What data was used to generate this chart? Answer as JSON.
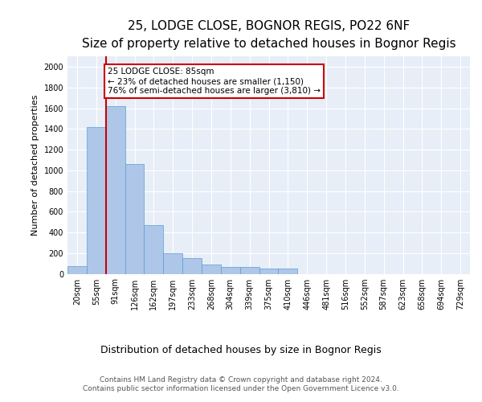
{
  "title_line1": "25, LODGE CLOSE, BOGNOR REGIS, PO22 6NF",
  "title_line2": "Size of property relative to detached houses in Bognor Regis",
  "xlabel": "Distribution of detached houses by size in Bognor Regis",
  "ylabel": "Number of detached properties",
  "categories": [
    "20sqm",
    "55sqm",
    "91sqm",
    "126sqm",
    "162sqm",
    "197sqm",
    "233sqm",
    "268sqm",
    "304sqm",
    "339sqm",
    "375sqm",
    "410sqm",
    "446sqm",
    "481sqm",
    "516sqm",
    "552sqm",
    "587sqm",
    "623sqm",
    "658sqm",
    "694sqm",
    "729sqm"
  ],
  "values": [
    75,
    1420,
    1620,
    1060,
    470,
    200,
    155,
    90,
    70,
    65,
    55,
    50,
    0,
    0,
    0,
    0,
    0,
    0,
    0,
    0,
    0
  ],
  "bar_color": "#aec6e8",
  "bar_edge_color": "#5a9fd4",
  "vline_color": "#cc0000",
  "vline_x": 1.5,
  "annotation_text": "25 LODGE CLOSE: 85sqm\n← 23% of detached houses are smaller (1,150)\n76% of semi-detached houses are larger (3,810) →",
  "annotation_box_edgecolor": "#cc0000",
  "ylim": [
    0,
    2100
  ],
  "yticks": [
    0,
    200,
    400,
    600,
    800,
    1000,
    1200,
    1400,
    1600,
    1800,
    2000
  ],
  "plot_bg_color": "#e8eef7",
  "footer_line1": "Contains HM Land Registry data © Crown copyright and database right 2024.",
  "footer_line2": "Contains public sector information licensed under the Open Government Licence v3.0.",
  "title_fontsize": 11,
  "subtitle_fontsize": 9.5,
  "xlabel_fontsize": 9,
  "ylabel_fontsize": 8,
  "tick_fontsize": 7,
  "annotation_fontsize": 7.5,
  "footer_fontsize": 6.5
}
